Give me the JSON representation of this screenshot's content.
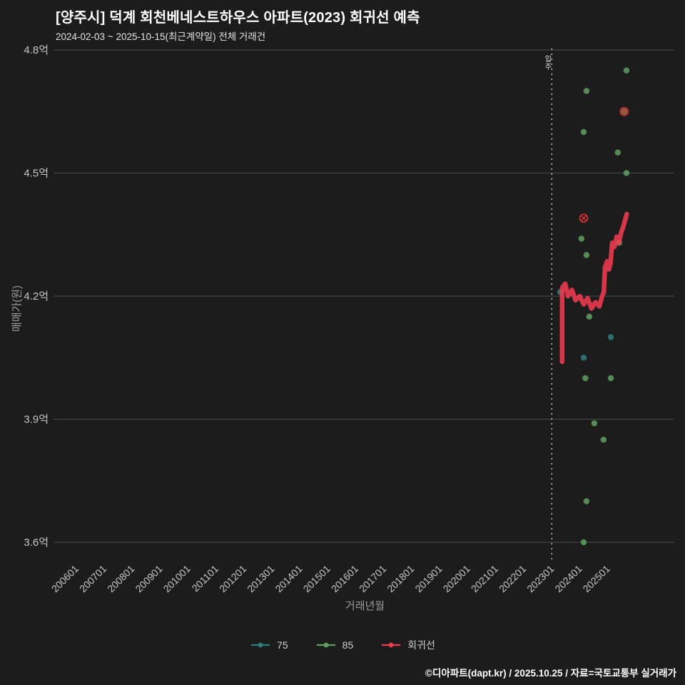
{
  "page": {
    "title": "[양주시] 덕계 회천베네스트하우스 아파트(2023) 회귀선 예측",
    "subtitle": "2024-02-03 ~ 2025-10-15(최근계약일) 전체 거래건",
    "footer": "©디아파트(dapt.kr) / 2025.10.25 / 자료=국토교통부 실거래가"
  },
  "colors": {
    "background": "#1c1c1c",
    "grid": "#4b4b4b",
    "tick": "#c6c6c6",
    "muted": "#9b9b9b",
    "annotation": "#e6e6e6",
    "teal": "#2f7e7e",
    "green": "#5f9f5f",
    "red": "#ef3b4e"
  },
  "chart_data": {
    "type": "scatter",
    "title": "[양주시] 덕계 회천베네스트하우스 아파트(2023) 회귀선 예측",
    "subtitle": "2024-02-03 ~ 2025-10-15(최근계약일) 전체 거래건",
    "xlabel": "거래년월",
    "ylabel": "매매가(원)",
    "grid": "horizontal",
    "xlim": [
      2005.3,
      2027.5
    ],
    "ylim": [
      3.55,
      4.82
    ],
    "x_ticks": [
      "200601",
      "200701",
      "200801",
      "200901",
      "201001",
      "201101",
      "201201",
      "201301",
      "201401",
      "201501",
      "201601",
      "201701",
      "201801",
      "201901",
      "202001",
      "202101",
      "202201",
      "202301",
      "202401",
      "202501"
    ],
    "y_ticks": [
      "4.8억",
      "4.5억",
      "4.2억",
      "3.9억",
      "3.6억"
    ],
    "y_tick_values": [
      4.8,
      4.5,
      4.2,
      3.9,
      3.6
    ],
    "annotation": {
      "label": "입주",
      "x": 2023.1
    },
    "legend": {
      "position": "bottom",
      "entries": [
        "75",
        "85",
        "회귀선"
      ]
    },
    "series": [
      {
        "name": "75",
        "type": "scatter",
        "color": "#2f7e7e",
        "points": [
          [
            2023.4,
            4.21
          ],
          [
            2024.24,
            4.05
          ],
          [
            2025.21,
            4.1
          ]
        ]
      },
      {
        "name": "85",
        "type": "scatter",
        "color": "#5f9f5f",
        "points": [
          [
            2025.77,
            4.75
          ],
          [
            2024.34,
            4.7
          ],
          [
            2025.69,
            4.65
          ],
          [
            2024.24,
            4.6
          ],
          [
            2025.46,
            4.55
          ],
          [
            2025.77,
            4.5
          ],
          [
            2024.16,
            4.34
          ],
          [
            2024.34,
            4.3
          ],
          [
            2025.51,
            4.33
          ],
          [
            2024.44,
            4.15
          ],
          [
            2024.3,
            4.0
          ],
          [
            2025.21,
            4.0
          ],
          [
            2024.62,
            3.89
          ],
          [
            2024.95,
            3.85
          ],
          [
            2024.34,
            3.7
          ],
          [
            2024.24,
            3.6
          ]
        ]
      },
      {
        "name": "회귀선",
        "type": "line",
        "color": "#ef3b4e",
        "points": [
          [
            2023.47,
            4.04
          ],
          [
            2023.47,
            4.22
          ],
          [
            2023.58,
            4.23
          ],
          [
            2023.68,
            4.2
          ],
          [
            2023.82,
            4.215
          ],
          [
            2023.95,
            4.19
          ],
          [
            2024.1,
            4.2
          ],
          [
            2024.24,
            4.18
          ],
          [
            2024.38,
            4.195
          ],
          [
            2024.52,
            4.17
          ],
          [
            2024.66,
            4.185
          ],
          [
            2024.8,
            4.175
          ],
          [
            2024.9,
            4.2
          ],
          [
            2024.96,
            4.21
          ],
          [
            2025.0,
            4.27
          ],
          [
            2025.08,
            4.285
          ],
          [
            2025.14,
            4.265
          ],
          [
            2025.2,
            4.28
          ],
          [
            2025.26,
            4.33
          ],
          [
            2025.34,
            4.32
          ],
          [
            2025.42,
            4.345
          ],
          [
            2025.5,
            4.33
          ],
          [
            2025.58,
            4.355
          ],
          [
            2025.66,
            4.37
          ],
          [
            2025.72,
            4.385
          ],
          [
            2025.78,
            4.4
          ]
        ]
      },
      {
        "name": "최근거래",
        "type": "marker-x",
        "color": "#e03131",
        "points": [
          [
            2025.69,
            4.65
          ],
          [
            2024.24,
            4.39
          ]
        ]
      }
    ]
  }
}
